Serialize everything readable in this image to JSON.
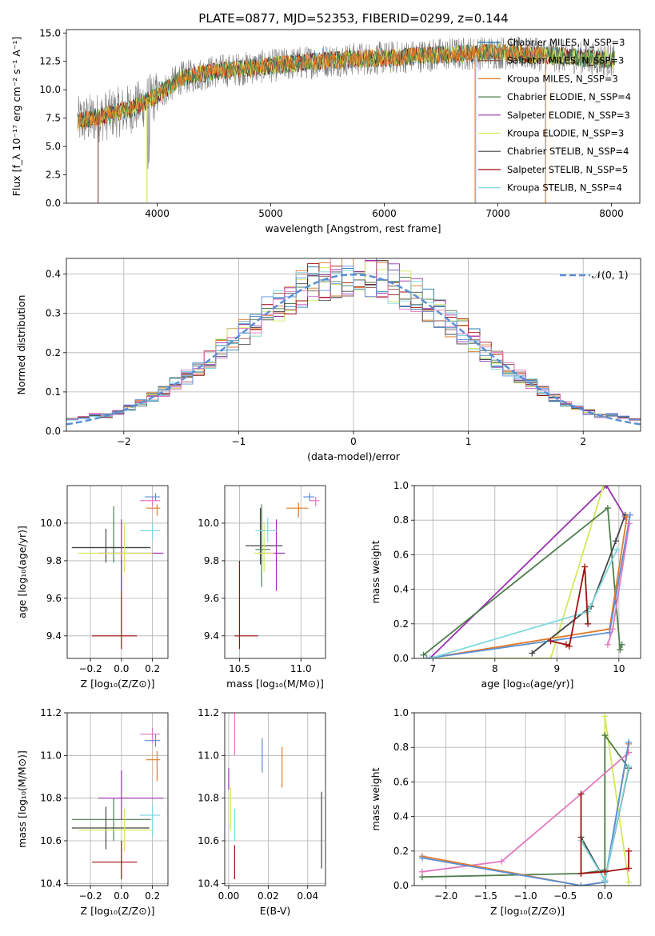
{
  "title": "PLATE=0877, MJD=52353, FIBERID=0299, z=0.144",
  "colors": {
    "Chabrier MILES": "#1f77b4",
    "Salpeter MILES": "#8c564b",
    "Kroupa MILES": "#e07b2a",
    "Chabrier ELODIE": "#4e7d4e",
    "Salpeter ELODIE": "#9b30b0",
    "Kroupa ELODIE": "#d4e85a",
    "Chabrier STELIB": "#444444",
    "Salpeter STELIB": "#a01010",
    "Kroupa STELIB": "#7fd8e0",
    "pink": "#e377c2",
    "blue": "#5b8fd6"
  },
  "chart_data": [
    {
      "id": "spectrum",
      "type": "line",
      "xlabel": "wavelength [Angstrom, rest frame]",
      "ylabel": "Flux [f_λ 10⁻¹⁷ erg cm⁻² s⁻¹ A⁻¹]",
      "xlim": [
        3200,
        8250
      ],
      "ylim": [
        0,
        15.3
      ],
      "xticks": [
        "4000",
        "5000",
        "6000",
        "7000",
        "8000"
      ],
      "yticks": [
        "0.0",
        "2.5",
        "5.0",
        "7.5",
        "10.0",
        "12.5",
        "15.0"
      ],
      "legend": [
        "Chabrier MILES, N_SSP=3",
        "Salpeter MILES, N_SSP=3",
        "Kroupa MILES, N_SSP=3",
        "Chabrier ELODIE, N_SSP=4",
        "Salpeter ELODIE, N_SSP=3",
        "Kroupa ELODIE, N_SSP=3",
        "Chabrier STELIB, N_SSP=4",
        "Salpeter STELIB, N_SSP=5",
        "Kroupa STELIB, N_SSP=4"
      ],
      "legend_placement": "top-right",
      "continuum": {
        "x": [
          3300,
          3500,
          3800,
          4000,
          4200,
          4500,
          5000,
          5500,
          6000,
          6500,
          7000,
          7500,
          8000
        ],
        "y": [
          7.2,
          7.6,
          8.4,
          9.5,
          11.0,
          11.6,
          12.1,
          12.6,
          12.8,
          13.1,
          13.3,
          13.0,
          12.6
        ]
      },
      "dropouts": [
        {
          "x": 3480,
          "series": "Salpeter MILES"
        },
        {
          "x": 3910,
          "series": "Kroupa ELODIE"
        },
        {
          "x": 6800,
          "series": "Kroupa MILES"
        },
        {
          "x": 6805,
          "series": "Kroupa STELIB"
        },
        {
          "x": 7420,
          "series": "Kroupa MILES"
        }
      ]
    },
    {
      "id": "residuals",
      "type": "histogram",
      "xlabel": "(data-model)/error",
      "ylabel": "Normed distribution",
      "xlim": [
        -2.5,
        2.5
      ],
      "ylim": [
        0,
        0.44
      ],
      "xticks": [
        "−2",
        "−1",
        "0",
        "1",
        "2"
      ],
      "yticks": [
        "0.0",
        "0.1",
        "0.2",
        "0.3",
        "0.4"
      ],
      "legend": "𝒩(0, 1)",
      "legend_placement": "top-right",
      "bin_width": 0.1
    },
    {
      "id": "age-vs-Z",
      "type": "errorbar",
      "xlabel": "Z [log₁₀(Z/Z⊙)]",
      "ylabel": "age  [log₁₀(age/yr)]",
      "xlim": [
        -0.35,
        0.3
      ],
      "ylim": [
        9.28,
        10.2
      ],
      "xticks": [
        "−0.2",
        "0.0",
        "0.2"
      ],
      "yticks": [
        "9.4",
        "9.6",
        "9.8",
        "10.0"
      ],
      "points": [
        {
          "series": "Salpeter STELIB",
          "x": 0.0,
          "y": 9.4,
          "xerr": [
            0.19,
            0.1
          ],
          "yerr": [
            0.07,
            0.4
          ]
        },
        {
          "series": "Chabrier ELODIE",
          "x": -0.05,
          "y": 9.87,
          "xerr": [
            0.27,
            0.24
          ],
          "yerr": [
            0.08,
            0.22
          ]
        },
        {
          "series": "Chabrier STELIB",
          "x": -0.1,
          "y": 9.87,
          "xerr": [
            0.22,
            0.28
          ],
          "yerr": [
            0.08,
            0.1
          ]
        },
        {
          "series": "Salpeter ELODIE",
          "x": 0.0,
          "y": 9.84,
          "xerr": [
            0.15,
            0.27
          ],
          "yerr": [
            0.2,
            0.18
          ]
        },
        {
          "series": "Kroupa ELODIE",
          "x": 0.02,
          "y": 9.84,
          "xerr": [
            0.3,
            0.18
          ],
          "yerr": [
            0.1,
            0.16
          ]
        },
        {
          "series": "Kroupa STELIB",
          "x": 0.2,
          "y": 9.96,
          "xerr": [
            0.08,
            0.05
          ],
          "yerr": [
            0.05,
            0.04
          ]
        },
        {
          "series": "Kroupa MILES",
          "x": 0.23,
          "y": 10.08,
          "xerr": [
            0.07,
            0.02
          ],
          "yerr": [
            0.04,
            0.02
          ]
        },
        {
          "series": "pink",
          "x": 0.2,
          "y": 10.12,
          "xerr": [
            0.08,
            0.05
          ],
          "yerr": [
            0.03,
            0.02
          ]
        },
        {
          "series": "blue",
          "x": 0.22,
          "y": 10.14,
          "xerr": [
            0.07,
            0.03
          ],
          "yerr": [
            0.02,
            0.02
          ]
        }
      ]
    },
    {
      "id": "age-vs-mass",
      "type": "errorbar",
      "xlabel": "mass [log₁₀(M/M⊙)]",
      "ylabel": "",
      "xlim": [
        10.38,
        11.2
      ],
      "ylim": [
        9.28,
        10.2
      ],
      "xticks": [
        "10.5",
        "11.0"
      ],
      "yticks": [
        "9.4",
        "9.6",
        "9.8",
        "10.0"
      ],
      "points": [
        {
          "series": "Salpeter STELIB",
          "x": 10.5,
          "y": 9.4,
          "xerr": [
            0.04,
            0.15
          ],
          "yerr": [
            0.07,
            0.4
          ]
        },
        {
          "series": "Chabrier STELIB",
          "x": 10.67,
          "y": 9.88,
          "xerr": [
            0.12,
            0.18
          ],
          "yerr": [
            0.1,
            0.2
          ]
        },
        {
          "series": "Chabrier ELODIE",
          "x": 10.68,
          "y": 9.86,
          "xerr": [
            0.05,
            0.07
          ],
          "yerr": [
            0.2,
            0.24
          ]
        },
        {
          "series": "Salpeter ELODIE",
          "x": 10.8,
          "y": 9.84,
          "xerr": [
            0.15,
            0.07
          ],
          "yerr": [
            0.2,
            0.18
          ]
        },
        {
          "series": "Kroupa ELODIE",
          "x": 10.7,
          "y": 9.84,
          "xerr": [
            0.08,
            0.08
          ],
          "yerr": [
            0.1,
            0.16
          ]
        },
        {
          "series": "Kroupa STELIB",
          "x": 10.73,
          "y": 9.96,
          "xerr": [
            0.1,
            0.08
          ],
          "yerr": [
            0.06,
            0.07
          ]
        },
        {
          "series": "Kroupa MILES",
          "x": 10.98,
          "y": 10.08,
          "xerr": [
            0.1,
            0.08
          ],
          "yerr": [
            0.05,
            0.03
          ]
        },
        {
          "series": "pink",
          "x": 11.12,
          "y": 10.12,
          "xerr": [
            0.05,
            0.03
          ],
          "yerr": [
            0.03,
            0.02
          ]
        },
        {
          "series": "blue",
          "x": 11.07,
          "y": 10.14,
          "xerr": [
            0.05,
            0.04
          ],
          "yerr": [
            0.02,
            0.02
          ]
        }
      ]
    },
    {
      "id": "massweight-vs-age",
      "type": "line",
      "xlabel": "age  [log₁₀(age/yr)]",
      "ylabel": "mass weight",
      "xlim": [
        6.7,
        10.35
      ],
      "ylim": [
        0,
        1
      ],
      "xticks": [
        "7",
        "8",
        "9",
        "10"
      ],
      "yticks": [
        "0.0",
        "0.2",
        "0.4",
        "0.6",
        "0.8",
        "1.0"
      ],
      "series": [
        {
          "series": "Salpeter ELODIE",
          "x": [
            6.95,
            9.8,
            10.1
          ],
          "y": [
            0.0,
            1.0,
            0.82
          ]
        },
        {
          "series": "Kroupa ELODIE",
          "x": [
            6.9,
            8.9,
            9.75
          ],
          "y": [
            0.0,
            0.0,
            1.0
          ]
        },
        {
          "series": "Chabrier ELODIE",
          "x": [
            6.85,
            9.82,
            10.02,
            10.05
          ],
          "y": [
            0.02,
            0.87,
            0.05,
            0.08
          ]
        },
        {
          "series": "Chabrier STELIB",
          "x": [
            8.6,
            9.55,
            9.95,
            10.1
          ],
          "y": [
            0.03,
            0.3,
            0.68,
            0.83
          ]
        },
        {
          "series": "Kroupa MILES",
          "x": [
            6.9,
            9.85,
            10.13
          ],
          "y": [
            0.0,
            0.17,
            0.82
          ]
        },
        {
          "series": "blue",
          "x": [
            6.9,
            9.85,
            10.18
          ],
          "y": [
            0.0,
            0.15,
            0.83
          ]
        },
        {
          "series": "Kroupa STELIB",
          "x": [
            6.95,
            9.5,
            9.97
          ],
          "y": [
            0.0,
            0.27,
            0.63
          ]
        },
        {
          "series": "pink",
          "x": [
            9.82,
            9.9,
            10.17
          ],
          "y": [
            0.08,
            0.17,
            0.78
          ]
        },
        {
          "series": "Salpeter STELIB",
          "x": [
            8.9,
            9.15,
            9.2,
            9.45,
            9.5
          ],
          "y": [
            0.1,
            0.08,
            0.07,
            0.53,
            0.2
          ]
        }
      ]
    },
    {
      "id": "mass-vs-Z",
      "type": "errorbar",
      "xlabel": "Z [log₁₀(Z/Z⊙)]",
      "ylabel": "mass [log₁₀(M/M⊙)]",
      "xlim": [
        -0.35,
        0.3
      ],
      "ylim": [
        10.39,
        11.2
      ],
      "xticks": [
        "−0.2",
        "0.0",
        "0.2"
      ],
      "yticks": [
        "10.4",
        "10.6",
        "10.8",
        "11.0",
        "11.2"
      ],
      "points": [
        {
          "series": "Salpeter STELIB",
          "x": 0.0,
          "y": 10.5,
          "xerr": [
            0.19,
            0.1
          ],
          "yerr": [
            0.08,
            0.1
          ]
        },
        {
          "series": "Chabrier ELODIE",
          "x": -0.05,
          "y": 10.7,
          "xerr": [
            0.27,
            0.24
          ],
          "yerr": [
            0.1,
            0.1
          ]
        },
        {
          "series": "Chabrier STELIB",
          "x": -0.1,
          "y": 10.66,
          "xerr": [
            0.22,
            0.28
          ],
          "yerr": [
            0.1,
            0.1
          ]
        },
        {
          "series": "Salpeter ELODIE",
          "x": 0.0,
          "y": 10.8,
          "xerr": [
            0.15,
            0.27
          ],
          "yerr": [
            0.1,
            0.13
          ]
        },
        {
          "series": "Kroupa ELODIE",
          "x": 0.02,
          "y": 10.65,
          "xerr": [
            0.3,
            0.18
          ],
          "yerr": [
            0.1,
            0.1
          ]
        },
        {
          "series": "Kroupa STELIB",
          "x": 0.2,
          "y": 10.72,
          "xerr": [
            0.08,
            0.05
          ],
          "yerr": [
            0.1,
            0.05
          ]
        },
        {
          "series": "Kroupa MILES",
          "x": 0.23,
          "y": 10.98,
          "xerr": [
            0.07,
            0.02
          ],
          "yerr": [
            0.1,
            0.04
          ]
        },
        {
          "series": "pink",
          "x": 0.2,
          "y": 11.1,
          "xerr": [
            0.08,
            0.05
          ],
          "yerr": [
            0.04,
            0.03
          ]
        },
        {
          "series": "blue",
          "x": 0.22,
          "y": 11.07,
          "xerr": [
            0.07,
            0.03
          ],
          "yerr": [
            0.03,
            0.03
          ]
        }
      ]
    },
    {
      "id": "mass-vs-EBV",
      "type": "errorbar",
      "xlabel": "E(B-V)",
      "ylabel": "",
      "xlim": [
        -0.002,
        0.049
      ],
      "ylim": [
        10.39,
        11.2
      ],
      "xticks": [
        "0.00",
        "0.02",
        "0.04"
      ],
      "yticks": [
        "10.4",
        "10.6",
        "10.8",
        "11.0",
        "11.2"
      ],
      "points": [
        {
          "series": "Salpeter STELIB",
          "x": 0.003,
          "y": 10.5,
          "yerr": [
            0.08,
            0.08
          ]
        },
        {
          "series": "Kroupa STELIB",
          "x": 0.003,
          "y": 10.7,
          "yerr": [
            0.1,
            0.05
          ]
        },
        {
          "series": "Kroupa ELODIE",
          "x": 0.001,
          "y": 10.75,
          "yerr": [
            0.1,
            0.1
          ]
        },
        {
          "series": "Salpeter ELODIE",
          "x": 0.0,
          "y": 10.88,
          "yerr": [
            0.04,
            0.06
          ]
        },
        {
          "series": "pink",
          "x": 0.003,
          "y": 11.1,
          "yerr": [
            0.1,
            0.1
          ]
        },
        {
          "series": "blue",
          "x": 0.017,
          "y": 11.0,
          "yerr": [
            0.08,
            0.08
          ]
        },
        {
          "series": "Kroupa MILES",
          "x": 0.027,
          "y": 10.95,
          "yerr": [
            0.1,
            0.09
          ]
        },
        {
          "series": "Chabrier STELIB",
          "x": 0.047,
          "y": 10.65,
          "yerr": [
            0.18,
            0.18
          ]
        }
      ]
    },
    {
      "id": "massweight-vs-Z",
      "type": "line",
      "xlabel": "Z [log₁₀(Z/Z⊙)]",
      "ylabel": "mass weight",
      "xlim": [
        -2.4,
        0.45
      ],
      "ylim": [
        0,
        1
      ],
      "xticks": [
        "−2.0",
        "−1.5",
        "−1.0",
        "−0.5",
        "0.0"
      ],
      "yticks": [
        "0.0",
        "0.2",
        "0.4",
        "0.6",
        "0.8",
        "1.0"
      ],
      "series": [
        {
          "series": "Kroupa ELODIE",
          "x": [
            0.0,
            0.0,
            0.3
          ],
          "y": [
            0.0,
            0.98,
            0.02
          ]
        },
        {
          "series": "Chabrier ELODIE",
          "x": [
            -2.3,
            -0.3,
            0.0,
            0.0,
            0.3
          ],
          "y": [
            0.05,
            0.07,
            0.09,
            0.87,
            0.68
          ]
        },
        {
          "series": "pink",
          "x": [
            -2.3,
            -1.3,
            -0.3,
            0.3
          ],
          "y": [
            0.08,
            0.14,
            0.53,
            0.77
          ]
        },
        {
          "series": "Kroupa MILES",
          "x": [
            -2.3,
            -0.3,
            0.0,
            0.3
          ],
          "y": [
            0.17,
            0.0,
            0.02,
            0.82
          ]
        },
        {
          "series": "blue",
          "x": [
            -2.3,
            -0.3,
            0.0,
            0.3
          ],
          "y": [
            0.16,
            0.0,
            0.02,
            0.83
          ]
        },
        {
          "series": "Chabrier STELIB",
          "x": [
            -0.3,
            0.0,
            0.3
          ],
          "y": [
            0.28,
            0.03,
            0.68
          ]
        },
        {
          "series": "Kroupa STELIB",
          "x": [
            -0.3,
            0.0,
            0.3
          ],
          "y": [
            0.26,
            0.03,
            0.69
          ]
        },
        {
          "series": "Salpeter STELIB",
          "x": [
            -0.3,
            -0.3,
            0.0,
            0.3,
            0.3
          ],
          "y": [
            0.53,
            0.07,
            0.08,
            0.1,
            0.2
          ]
        }
      ]
    }
  ]
}
